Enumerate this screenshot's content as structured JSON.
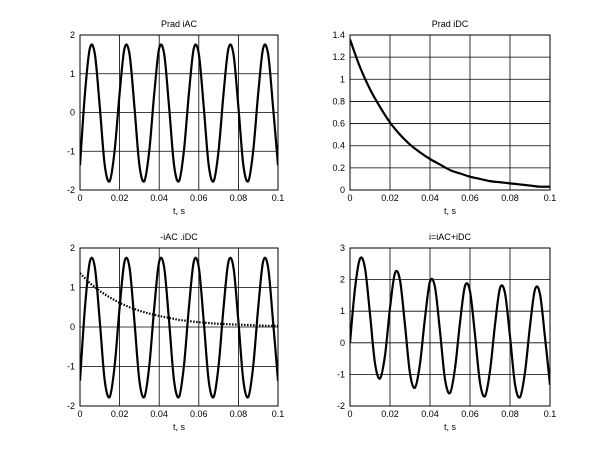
{
  "chart_data": [
    {
      "type": "line",
      "title": "Prad iAC",
      "xlabel": "t, s",
      "ylabel": "",
      "xlim": [
        0,
        0.1
      ],
      "ylim": [
        -2,
        2
      ],
      "xticks": [
        "0",
        "0.02",
        "0.04",
        "0.06",
        "0.08",
        "0.1"
      ],
      "yticks": [
        "-2",
        "-1",
        "0",
        "1",
        "2"
      ],
      "grid": true,
      "series": [
        {
          "style": "solid",
          "x": [
            0,
            0.0025,
            0.005,
            0.0075,
            0.01,
            0.0125,
            0.015,
            0.0175,
            0.02,
            0.0225,
            0.025,
            0.0275,
            0.03,
            0.0325,
            0.035,
            0.0375,
            0.04,
            0.0425,
            0.045,
            0.0475,
            0.05,
            0.0525,
            0.055,
            0.0575,
            0.06,
            0.0625,
            0.065,
            0.0675,
            0.07,
            0.0725,
            0.075,
            0.0775,
            0.08,
            0.0825,
            0.085,
            0.0875,
            0.09,
            0.0925,
            0.095,
            0.0975,
            0.1
          ],
          "y": [
            -1.36,
            0.49,
            1.66,
            1.51,
            0.14,
            -1.36,
            -1.77,
            -0.98,
            0.49,
            1.66,
            1.51,
            0.14,
            -1.36,
            -1.77,
            -0.98,
            0.49,
            1.66,
            1.51,
            0.14,
            -1.36,
            -1.77,
            -0.98,
            0.49,
            1.66,
            1.51,
            0.14,
            -1.36,
            -1.77,
            -0.98,
            0.49,
            1.66,
            1.51,
            0.14,
            -1.36,
            -1.77,
            -0.98,
            0.49,
            1.66,
            1.51,
            0.14,
            -1.36
          ]
        }
      ]
    },
    {
      "type": "line",
      "title": "Prad iDC",
      "xlabel": "t, s",
      "ylabel": "",
      "xlim": [
        0,
        0.1
      ],
      "ylim": [
        0,
        1.4
      ],
      "xticks": [
        "0",
        "0.02",
        "0.04",
        "0.06",
        "0.08",
        "0.1"
      ],
      "yticks": [
        "0",
        "0.2",
        "0.4",
        "0.6",
        "0.8",
        "1",
        "1.2",
        "1.4"
      ],
      "grid": true,
      "series": [
        {
          "style": "solid",
          "x": [
            0,
            0.005,
            0.01,
            0.015,
            0.02,
            0.025,
            0.03,
            0.035,
            0.04,
            0.045,
            0.05,
            0.055,
            0.06,
            0.065,
            0.07,
            0.075,
            0.08,
            0.085,
            0.09,
            0.095,
            0.1
          ],
          "y": [
            1.36,
            1.11,
            0.91,
            0.75,
            0.61,
            0.5,
            0.41,
            0.34,
            0.28,
            0.23,
            0.18,
            0.15,
            0.12,
            0.1,
            0.08,
            0.07,
            0.06,
            0.05,
            0.04,
            0.03,
            0.03
          ]
        }
      ]
    },
    {
      "type": "line",
      "title": "-iAC  .iDC",
      "xlabel": "t, s",
      "ylabel": "",
      "xlim": [
        0,
        0.1
      ],
      "ylim": [
        -2,
        2
      ],
      "xticks": [
        "0",
        "0.02",
        "0.04",
        "0.06",
        "0.08",
        "0.1"
      ],
      "yticks": [
        "-2",
        "-1",
        "0",
        "1",
        "2"
      ],
      "grid": true,
      "series": [
        {
          "style": "solid",
          "x": [
            0,
            0.0025,
            0.005,
            0.0075,
            0.01,
            0.0125,
            0.015,
            0.0175,
            0.02,
            0.0225,
            0.025,
            0.0275,
            0.03,
            0.0325,
            0.035,
            0.0375,
            0.04,
            0.0425,
            0.045,
            0.0475,
            0.05,
            0.0525,
            0.055,
            0.0575,
            0.06,
            0.0625,
            0.065,
            0.0675,
            0.07,
            0.0725,
            0.075,
            0.0775,
            0.08,
            0.0825,
            0.085,
            0.0875,
            0.09,
            0.0925,
            0.095,
            0.0975,
            0.1
          ],
          "y": [
            -1.36,
            0.49,
            1.66,
            1.51,
            0.14,
            -1.36,
            -1.77,
            -0.98,
            0.49,
            1.66,
            1.51,
            0.14,
            -1.36,
            -1.77,
            -0.98,
            0.49,
            1.66,
            1.51,
            0.14,
            -1.36,
            -1.77,
            -0.98,
            0.49,
            1.66,
            1.51,
            0.14,
            -1.36,
            -1.77,
            -0.98,
            0.49,
            1.66,
            1.51,
            0.14,
            -1.36,
            -1.77,
            -0.98,
            0.49,
            1.66,
            1.51,
            0.14,
            -1.36
          ]
        },
        {
          "style": "dotted",
          "x": [
            0,
            0.005,
            0.01,
            0.015,
            0.02,
            0.025,
            0.03,
            0.035,
            0.04,
            0.045,
            0.05,
            0.055,
            0.06,
            0.065,
            0.07,
            0.075,
            0.08,
            0.085,
            0.09,
            0.095,
            0.1
          ],
          "y": [
            1.36,
            1.11,
            0.91,
            0.75,
            0.61,
            0.5,
            0.41,
            0.34,
            0.28,
            0.23,
            0.18,
            0.15,
            0.12,
            0.1,
            0.08,
            0.07,
            0.06,
            0.05,
            0.04,
            0.03,
            0.03
          ]
        }
      ]
    },
    {
      "type": "line",
      "title": "i=iAC+iDC",
      "xlabel": "t, s",
      "ylabel": "",
      "xlim": [
        0,
        0.1
      ],
      "ylim": [
        -2,
        3
      ],
      "xticks": [
        "0",
        "0.02",
        "0.04",
        "0.06",
        "0.08",
        "0.1"
      ],
      "yticks": [
        "-2",
        "-1",
        "0",
        "1",
        "2",
        "3"
      ],
      "grid": true,
      "series": [
        {
          "style": "solid",
          "x": [
            0,
            0.0025,
            0.005,
            0.0075,
            0.01,
            0.0125,
            0.015,
            0.0175,
            0.02,
            0.0225,
            0.025,
            0.0275,
            0.03,
            0.0325,
            0.035,
            0.0375,
            0.04,
            0.0425,
            0.045,
            0.0475,
            0.05,
            0.0525,
            0.055,
            0.0575,
            0.06,
            0.0625,
            0.065,
            0.0675,
            0.07,
            0.0725,
            0.075,
            0.0775,
            0.08,
            0.0825,
            0.085,
            0.0875,
            0.09,
            0.0925,
            0.095,
            0.0975,
            0.1
          ],
          "y": [
            0.0,
            1.72,
            2.66,
            2.36,
            0.91,
            -0.65,
            -1.13,
            -0.4,
            1.1,
            2.21,
            1.98,
            0.56,
            -0.97,
            -1.42,
            -0.66,
            0.79,
            1.94,
            1.76,
            0.36,
            -1.15,
            -1.59,
            -0.81,
            0.64,
            1.8,
            1.63,
            0.25,
            -1.26,
            -1.69,
            -0.89,
            0.57,
            1.73,
            1.57,
            0.2,
            -1.31,
            -1.72,
            -0.93,
            0.53,
            1.69,
            1.54,
            0.17,
            -1.33
          ]
        }
      ]
    }
  ]
}
